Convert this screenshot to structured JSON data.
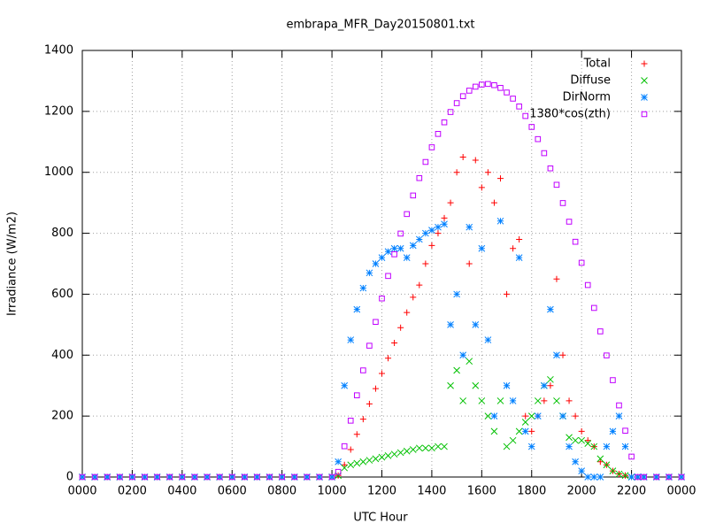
{
  "chart_data": {
    "type": "scatter",
    "title": "embrapa_MFR_Day20150801.txt",
    "x_label": "UTC Hour",
    "y_label": "Irradiance (W/m2)",
    "x": [
      0,
      0.5,
      1,
      1.5,
      2,
      2.5,
      3,
      3.5,
      4,
      4.5,
      5,
      5.5,
      6,
      6.5,
      7,
      7.5,
      8,
      8.5,
      9,
      9.5,
      10,
      10.25,
      10.5,
      10.75,
      11,
      11.25,
      11.5,
      11.75,
      12,
      12.25,
      12.5,
      12.75,
      13,
      13.25,
      13.5,
      13.75,
      14,
      14.25,
      14.5,
      14.75,
      15,
      15.25,
      15.5,
      15.75,
      16,
      16.25,
      16.5,
      16.75,
      17,
      17.25,
      17.5,
      17.75,
      18,
      18.25,
      18.5,
      18.75,
      19,
      19.25,
      19.5,
      19.75,
      20,
      20.25,
      20.5,
      20.75,
      21,
      21.25,
      21.5,
      21.75,
      22,
      22.25,
      22.5,
      23,
      23.5,
      24
    ],
    "series": [
      {
        "name": "Total",
        "color": "#ff0000",
        "marker": "plus",
        "values": [
          0,
          0,
          0,
          0,
          0,
          0,
          0,
          0,
          0,
          0,
          0,
          0,
          0,
          0,
          0,
          0,
          0,
          0,
          0,
          0,
          0,
          5,
          40,
          90,
          140,
          190,
          240,
          290,
          340,
          390,
          440,
          490,
          540,
          590,
          630,
          700,
          760,
          800,
          850,
          900,
          1000,
          1050,
          700,
          1040,
          950,
          1000,
          900,
          980,
          600,
          750,
          780,
          200,
          150,
          200,
          250,
          300,
          650,
          400,
          250,
          200,
          150,
          120,
          100,
          50,
          40,
          20,
          10,
          5,
          0,
          0,
          0,
          0,
          0,
          0
        ]
      },
      {
        "name": "Diffuse",
        "color": "#00c000",
        "marker": "cross",
        "values": [
          0,
          0,
          0,
          0,
          0,
          0,
          0,
          0,
          0,
          0,
          0,
          0,
          0,
          0,
          0,
          0,
          0,
          0,
          0,
          0,
          0,
          5,
          30,
          40,
          45,
          50,
          55,
          60,
          65,
          70,
          75,
          80,
          85,
          90,
          95,
          95,
          95,
          100,
          100,
          300,
          350,
          250,
          380,
          300,
          250,
          200,
          150,
          250,
          100,
          120,
          150,
          180,
          200,
          250,
          300,
          320,
          250,
          200,
          130,
          120,
          120,
          110,
          100,
          60,
          40,
          20,
          10,
          5,
          0,
          0,
          0,
          0,
          0,
          0
        ]
      },
      {
        "name": "DirNorm",
        "color": "#0080ff",
        "marker": "star",
        "values": [
          0,
          0,
          0,
          0,
          0,
          0,
          0,
          0,
          0,
          0,
          0,
          0,
          0,
          0,
          0,
          0,
          0,
          0,
          0,
          0,
          0,
          50,
          300,
          450,
          550,
          620,
          670,
          700,
          720,
          740,
          750,
          750,
          720,
          760,
          780,
          800,
          810,
          820,
          830,
          500,
          600,
          400,
          820,
          500,
          750,
          450,
          200,
          840,
          300,
          250,
          720,
          150,
          100,
          200,
          300,
          550,
          400,
          200,
          100,
          50,
          20,
          0,
          0,
          0,
          100,
          150,
          200,
          100,
          0,
          0,
          0,
          0,
          0,
          0
        ]
      },
      {
        "name": "1380*cos(zth)",
        "color": "#c000ff",
        "marker": "square",
        "values": [
          0,
          0,
          0,
          0,
          0,
          0,
          0,
          0,
          0,
          0,
          0,
          0,
          0,
          0,
          0,
          0,
          0,
          0,
          0,
          0,
          0,
          17,
          101,
          185,
          268,
          350,
          431,
          509,
          586,
          660,
          731,
          799,
          863,
          924,
          981,
          1034,
          1082,
          1126,
          1164,
          1198,
          1227,
          1250,
          1268,
          1281,
          1288,
          1290,
          1286,
          1277,
          1262,
          1242,
          1216,
          1185,
          1149,
          1109,
          1063,
          1013,
          959,
          899,
          838,
          772,
          703,
          630,
          555,
          478,
          399,
          318,
          235,
          152,
          67,
          0,
          0,
          0,
          0,
          0
        ]
      }
    ],
    "xlim": [
      0,
      24
    ],
    "xticks": [
      {
        "value": 0,
        "label": "0000"
      },
      {
        "value": 2,
        "label": "0200"
      },
      {
        "value": 4,
        "label": "0400"
      },
      {
        "value": 6,
        "label": "0600"
      },
      {
        "value": 8,
        "label": "0800"
      },
      {
        "value": 10,
        "label": "1000"
      },
      {
        "value": 12,
        "label": "1200"
      },
      {
        "value": 14,
        "label": "1400"
      },
      {
        "value": 16,
        "label": "1600"
      },
      {
        "value": 18,
        "label": "1800"
      },
      {
        "value": 20,
        "label": "2000"
      },
      {
        "value": 22,
        "label": "2200"
      },
      {
        "value": 24,
        "label": "0000"
      }
    ],
    "ylim": [
      0,
      1400
    ],
    "yticks": [
      0,
      200,
      400,
      600,
      800,
      1000,
      1200,
      1400
    ],
    "grid": true,
    "legend": "top-right"
  }
}
